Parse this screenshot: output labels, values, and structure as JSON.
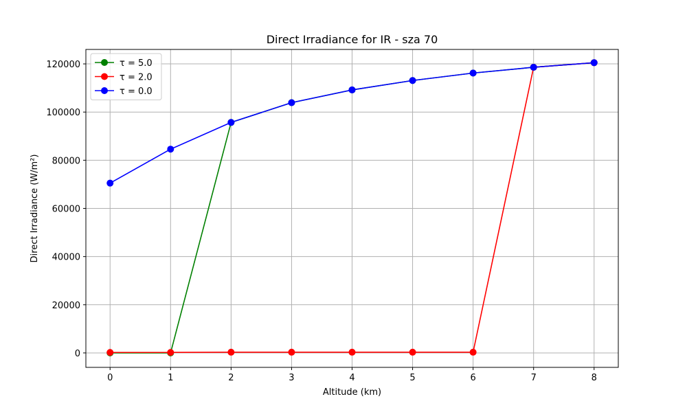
{
  "chart_data": {
    "type": "line",
    "title": "Direct Irradiance for IR - sza 70",
    "xlabel": "Altitude (km)",
    "ylabel": "Direct Irradiance (W/m²)",
    "x": [
      0,
      1,
      2,
      3,
      4,
      5,
      6,
      7,
      8
    ],
    "xlim": [
      -0.4,
      8.4
    ],
    "ylim": [
      -6000,
      126000
    ],
    "xticks": [
      0,
      1,
      2,
      3,
      4,
      5,
      6,
      7,
      8
    ],
    "yticks": [
      0,
      20000,
      40000,
      60000,
      80000,
      100000,
      120000
    ],
    "grid": true,
    "legend_position": "top-left",
    "series": [
      {
        "name": "τ = 5.0",
        "color": "#008000",
        "values": [
          0,
          0,
          95700,
          103900,
          109200,
          113100,
          116200,
          118600,
          120500
        ]
      },
      {
        "name": "τ = 2.0",
        "color": "#ff0000",
        "values": [
          200,
          200,
          300,
          300,
          300,
          300,
          300,
          118600,
          120500
        ]
      },
      {
        "name": "τ = 0.0",
        "color": "#0000ff",
        "values": [
          70500,
          84600,
          95700,
          103900,
          109200,
          113100,
          116200,
          118600,
          120500
        ]
      }
    ]
  }
}
